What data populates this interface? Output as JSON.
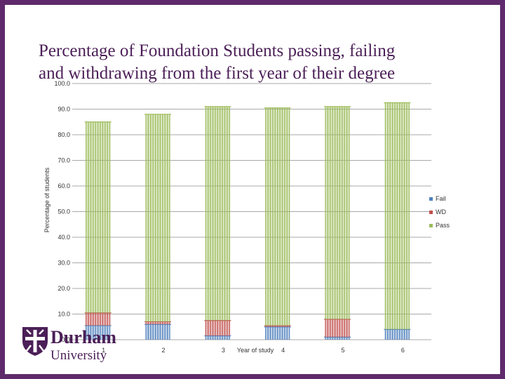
{
  "slide": {
    "title_line1": "Percentage of Foundation Students passing, failing",
    "title_line2": "and withdrawing from the first year of their degree",
    "logo_word": "Durham",
    "logo_sub": "University",
    "bg_color": "#5e2a6b"
  },
  "chart_data": {
    "type": "bar",
    "stacked": true,
    "categories": [
      "1",
      "2",
      "3",
      "4",
      "5",
      "6"
    ],
    "series": [
      {
        "name": "Fail",
        "color": "#4f81bd",
        "values": [
          5.5,
          6.0,
          1.5,
          5.0,
          1.0,
          4.0
        ]
      },
      {
        "name": "WD",
        "color": "#c0504d",
        "values": [
          5.0,
          1.0,
          6.0,
          0.5,
          7.0,
          0.0
        ]
      },
      {
        "name": "Pass",
        "color": "#9bbb59",
        "values": [
          74.5,
          81.0,
          83.5,
          85.0,
          83.0,
          88.5
        ]
      }
    ],
    "ylabel": "Percentage of students",
    "xlabel": "Year of study",
    "ylim": [
      0,
      100
    ],
    "yticks": [
      "0.0",
      "10.0",
      "20.0",
      "30.0",
      "40.0",
      "50.0",
      "60.0",
      "70.0",
      "80.0",
      "90.0",
      "100.0"
    ],
    "grid": true,
    "legend_position": "right"
  }
}
